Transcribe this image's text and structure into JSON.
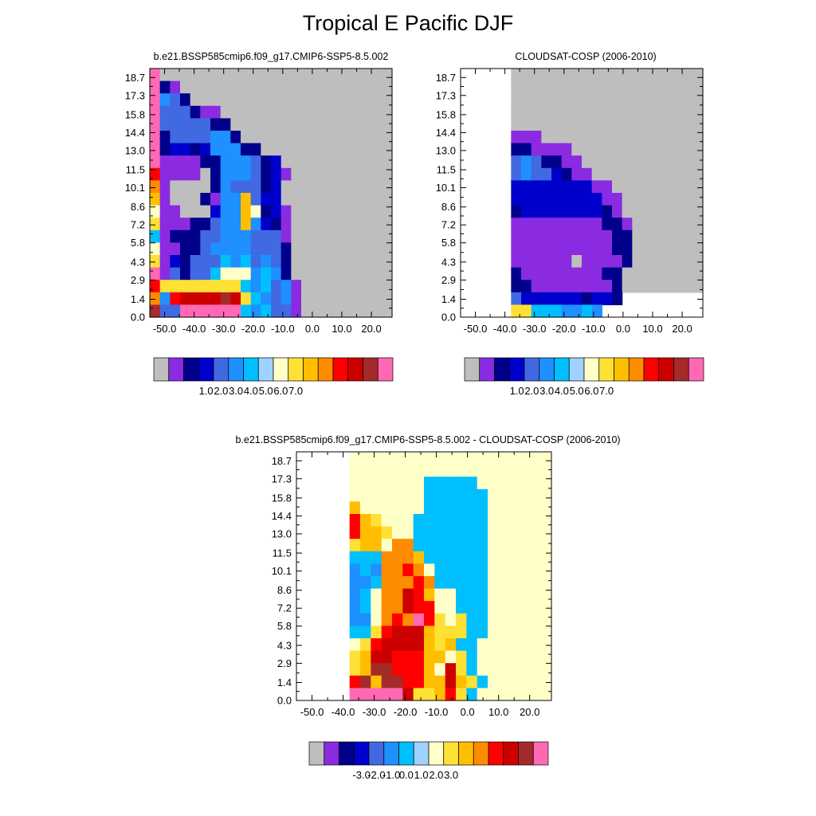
{
  "title": "Tropical E Pacific DJF",
  "panels": [
    {
      "title": "b.e21.BSSP585cmip6.f09_g17.CMIP6-SSP5-8.5.002"
    },
    {
      "title": "CLOUDSAT-COSP (2006-2010)"
    },
    {
      "title": "b.e21.BSSP585cmip6.f09_g17.CMIP6-SSP5-8.5.002 - CLOUDSAT-COSP (2006-2010)"
    }
  ],
  "chart_data": [
    {
      "type": "heatmap",
      "title": "b.e21.BSSP585cmip6.f09_g17.CMIP6-SSP5-8.5.002",
      "x_ticks": [
        "-50.0",
        "-40.0",
        "-30.0",
        "-20.0",
        "-10.0",
        "0.0",
        "10.0",
        "20.0"
      ],
      "y_ticks": [
        "0.0",
        "1.4",
        "2.9",
        "4.3",
        "5.8",
        "7.2",
        "8.6",
        "10.1",
        "11.5",
        "13.0",
        "14.4",
        "15.8",
        "17.3",
        "18.7"
      ],
      "xlim": [
        -55,
        27
      ],
      "ylim": [
        0,
        19.4
      ],
      "missing_color": "#BEBEBE",
      "colorbar_labels": [
        "1.0",
        "2.0",
        "3.0",
        "4.0",
        "5.0",
        "6.0",
        "7.0"
      ],
      "rows_top_to_bottom": [
        "PMMMMMMMMMMMMMMMMMMMMMMM",
        "PNVMMMMMMMMMMMMMMMMMMMMM",
        "PLKNMMMMMMMMMMMMMMMMMMMM",
        "PKKKNVVMMMMMMMMMMMMMMMMM",
        "PKKKKKNNMMMMMMMMMMMMMMMM",
        "PNKKKKLLNMMMMMMMMMMMMMMM",
        "PNBBNBLLLNNMMMMMMMMMMMMM",
        "PVVVVNNLLLKNBMMMMMMMMMMM",
        "RVVVVMNLLLKNBVMMMMMMMMMM",
        "OVMMMMNLKKKNBMMMMMMMMMMM",
        "GVMMMNVLLGKBBMMMMMMMMMMM",
        "TVVMMMBLLGTNBVMMMMMMMMMM",
        "YVVVNNKLLGLBNVMMMMMMMMMM",
        "SVNNNKKLLLKKKVMMMMMMMMMM",
        "TVVNNKLLLLKKKNMMMMMMMMMM",
        "YVBNKKKSLSKLKNMMMMMMMMMM",
        "PVKNKKSTTTLSLNMMMMMMMMMM",
        "RYYYYYYYYSLSKLVMMMMMMMMM",
        "OLRWWWWDWYSLKLVMMMMMMMMM",
        "DKKPPPPPPSLSKKVMMMMMMMMM"
      ]
    },
    {
      "type": "heatmap",
      "title": "CLOUDSAT-COSP (2006-2010)",
      "x_ticks": [
        "-50.0",
        "-40.0",
        "-30.0",
        "-20.0",
        "-10.0",
        "0.0",
        "10.0",
        "20.0"
      ],
      "y_ticks": [
        "0.0",
        "1.4",
        "2.9",
        "4.3",
        "5.8",
        "7.2",
        "8.6",
        "10.1",
        "11.5",
        "13.0",
        "14.4",
        "15.8",
        "17.3",
        "18.7"
      ],
      "xlim": [
        -55,
        27
      ],
      "ylim": [
        0,
        19.4
      ],
      "missing_color": "#BEBEBE",
      "colorbar_labels": [
        "1.0",
        "2.0",
        "3.0",
        "4.0",
        "5.0",
        "6.0",
        "7.0"
      ],
      "rows_top_to_bottom": [
        "_____MMMMMMMMMMMMMMMMMMM",
        "_____MMMMMMMMMMMMMMMMMMM",
        "_____MMMMMMMMMMMMMMMMMMM",
        "_____MMMMMMMMMMMMMMMMMMM",
        "_____MMMMMMMMMMMMMMMMMMM",
        "_____VVVMMMMMMMMMMMMMMMM",
        "_____NNVVVVMMMMMMMMMMMMM",
        "_____KLKNNVVMMMMMMMMMMMM",
        "_____KLKKBNVVMMMMMMMMMMM",
        "_____BBBBBBBBVVMMMMMMMMM",
        "_____BBBBBBBBBVVMMMMMMMM",
        "_____NBBBBBBBBNVMMMMMMMM",
        "_____VVVVVVVVVNNVMMMMMMM",
        "_____VVVVVVVVVVNNMMMMMMM",
        "_____VVVVVVVVVVNNMMMMMMM",
        "_____VVVVVVMVVVVNMMMMMMM",
        "_____NVVVVVVVVNNMMMMMMMM",
        "_____NNVVVVVVVVNMMMMMMMM",
        "_____KBBBBBBNBBN________",
        "_____YYSSSLLSL__________"
      ]
    },
    {
      "type": "heatmap",
      "title": "b.e21.BSSP585cmip6.f09_g17.CMIP6-SSP5-8.5.002 - CLOUDSAT-COSP (2006-2010)",
      "x_ticks": [
        "-50.0",
        "-40.0",
        "-30.0",
        "-20.0",
        "-10.0",
        "0.0",
        "10.0",
        "20.0"
      ],
      "y_ticks": [
        "0.0",
        "1.4",
        "2.9",
        "4.3",
        "5.8",
        "7.2",
        "8.6",
        "10.1",
        "11.5",
        "13.0",
        "14.4",
        "15.8",
        "17.3",
        "18.7"
      ],
      "xlim": [
        -55,
        27
      ],
      "ylim": [
        0,
        19.4
      ],
      "missing_color": "#BEBEBE",
      "colorbar_labels": [
        "-3.0",
        "-2.0",
        "-1.0",
        "0.0",
        "1.0",
        "2.0",
        "3.0"
      ],
      "rows_top_to_bottom": [
        "_____TTTTTTTTTTTTTTTTTTT",
        "_____TTTTTTTTTTTTTTTTTTT",
        "_____TTTTTTTSSSSSTTTTTTT",
        "_____TTTTTTTSSSSSSTTTTTT",
        "_____GTTTTTTSSSSSSTTTTTT",
        "_____RGYTTTSSSSSSSTTTTTT",
        "_____RGGYTTSSSSSSSTTTTTT",
        "_____YGGTOOSSSSSSSTTTTTT",
        "_____SSSOOOGSSSSSSTTTTTT",
        "_____LSLOOROTSSSSSTTTTTT",
        "_____LLSOOOROSSSSSTTTTTT",
        "_____LSTOOWRGTTSSSTTTTTT",
        "_____LSTOOWRRTTSSSTTTTTT",
        "_____LLTOROPRYTYSSTTTTTT",
        "_____SSYRWWWGYYYSSTTTTTT",
        "_____TYRWWWWGYGSSTTTTTTT",
        "_____YGWWRRRGGTYSTTTTTTT",
        "_____YGDDRRRGTWYSTTTTTTT",
        "_____RDGDDRRGGWGYSTTTTTT",
        "_____PPPPPWYYGRYSTTTTTTT"
      ]
    }
  ],
  "colorbar": {
    "colors": [
      "#BEBEBE",
      "#8A2BE2",
      "#00008B",
      "#0000CD",
      "#4169E1",
      "#1E90FF",
      "#00BFFF",
      "#A0D2FF",
      "#FFFFC8",
      "#FFE135",
      "#FFBF00",
      "#FF8C00",
      "#FF0000",
      "#CD0000",
      "#A52A2A",
      "#FF69B4"
    ],
    "color_key": {
      "M": "#BEBEBE",
      "V": "#8A2BE2",
      "N": "#00008B",
      "B": "#0000CD",
      "K": "#4169E1",
      "L": "#1E90FF",
      "S": "#00BFFF",
      "A": "#A0D2FF",
      "T": "#FFFFC8",
      "Y": "#FFE135",
      "G": "#FFBF00",
      "O": "#FF8C00",
      "R": "#FF0000",
      "W": "#CD0000",
      "D": "#A52A2A",
      "P": "#FF69B4"
    }
  }
}
